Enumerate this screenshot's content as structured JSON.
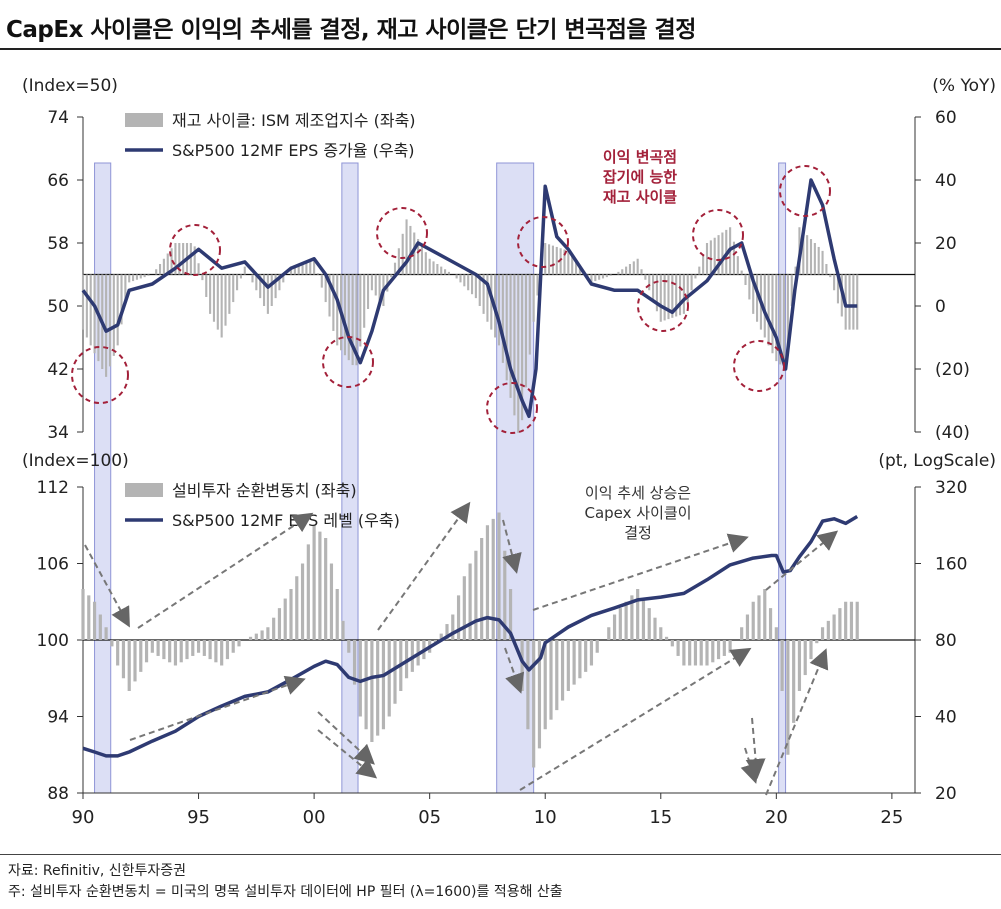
{
  "title": "CapEx 사이클은 이익의 추세를 결정, 재고 사이클은 단기 변곡점을 결정",
  "footnotes": [
    "자료: Refinitiv, 신한투자증권",
    "주: 설비투자 순환변동치 = 미국의 명목 설비투자 데이터에 HP 필터 (λ=1600)를 적용해 산출"
  ],
  "colors": {
    "bar": "#b4b4b4",
    "line": "#2e3a72",
    "shade": "#dcdff5",
    "shade_edge": "#8f95d6",
    "circle": "#a3213a",
    "arrow": "#777777"
  },
  "chart_data": [
    {
      "type": "bar+line",
      "left_axis_unit": "(Index=50)",
      "right_axis_unit": "(% YoY)",
      "left_ticks": [
        "74",
        "66",
        "58",
        "50",
        "42",
        "34"
      ],
      "right_ticks": [
        "60",
        "40",
        "20",
        "0",
        "(20)",
        "(40)"
      ],
      "ylim_left": [
        34,
        74
      ],
      "ylim_right": [
        -40,
        60
      ],
      "legend": [
        "재고 사이클: ISM 제조업지수 (좌축)",
        "S&P500 12MF EPS 증가율 (우축)"
      ],
      "legend_placement": "top-left",
      "annotation": [
        "이익 변곡점",
        "잡기에 능한",
        "재고 사이클"
      ],
      "recession_shading": [
        [
          1990.5,
          1991.2
        ],
        [
          2001.2,
          2001.9
        ],
        [
          2007.9,
          2009.5
        ],
        [
          2020.1,
          2020.4
        ]
      ],
      "bars": {
        "name": "재고 사이클: ISM 제조업지수",
        "x": [
          1990,
          1991,
          1991.5,
          1992,
          1993,
          1994,
          1994.8,
          1995.5,
          1996,
          1997,
          1998,
          1999,
          2000,
          2001,
          2001.8,
          2002.5,
          2003,
          2004,
          2005,
          2006,
          2007,
          2008,
          2008.9,
          2009.5,
          2010,
          2011,
          2012,
          2013,
          2014,
          2015,
          2016,
          2017,
          2018,
          2019,
          2020,
          2020.4,
          2021,
          2022,
          2022.7,
          2023,
          2023.5
        ],
        "y": [
          47,
          41,
          45,
          53,
          54,
          58,
          58,
          49,
          46,
          55,
          49,
          55,
          56,
          45,
          42,
          52,
          50,
          61,
          56,
          54,
          51,
          45,
          33,
          48,
          58,
          57,
          53,
          54,
          56,
          48,
          49,
          58,
          60,
          49,
          43,
          42,
          60,
          57,
          50,
          47,
          47
        ]
      },
      "line": {
        "name": "S&P500 12MF EPS 증가율",
        "x": [
          1990,
          1990.5,
          1991,
          1991.5,
          1992,
          1993,
          1994,
          1995,
          1996,
          1997,
          1998,
          1999,
          2000,
          2000.5,
          2001,
          2001.5,
          2002,
          2002.5,
          2003,
          2004,
          2004.5,
          2005,
          2006,
          2007,
          2007.5,
          2008,
          2008.5,
          2009,
          2009.3,
          2009.6,
          2010,
          2010.5,
          2011,
          2012,
          2013,
          2014,
          2015,
          2015.5,
          2016,
          2017,
          2018,
          2018.5,
          2019,
          2019.5,
          2020,
          2020.4,
          2020.8,
          2021,
          2021.5,
          2022,
          2022.5,
          2023,
          2023.5
        ],
        "y": [
          5,
          0,
          -8,
          -6,
          5,
          7,
          12,
          18,
          12,
          14,
          6,
          12,
          15,
          10,
          2,
          -10,
          -18,
          -8,
          5,
          14,
          20,
          18,
          14,
          10,
          7,
          -5,
          -20,
          -30,
          -35,
          -20,
          38,
          22,
          18,
          7,
          5,
          5,
          0,
          -2,
          2,
          8,
          18,
          20,
          8,
          -2,
          -10,
          -20,
          5,
          15,
          40,
          32,
          15,
          0,
          0
        ]
      }
    },
    {
      "type": "bar+line",
      "left_axis_unit": "(Index=100)",
      "right_axis_unit": "(pt, LogScale)",
      "left_ticks": [
        "112",
        "106",
        "100",
        "94",
        "88"
      ],
      "right_ticks": [
        "320",
        "160",
        "80",
        "40",
        "20"
      ],
      "ylim_left": [
        88,
        112
      ],
      "ylim_right": [
        20,
        320
      ],
      "y_scale_right": "log",
      "x_ticks": [
        "90",
        "95",
        "00",
        "05",
        "10",
        "15",
        "20",
        "25"
      ],
      "legend": [
        "설비투자 순환변동치 (좌축)",
        "S&P500 12MF EPS 레벨 (우축)"
      ],
      "legend_placement": "top-left",
      "annotation": [
        "이익 추세 상승은",
        "Capex 사이클이",
        "결정"
      ],
      "bars": {
        "name": "설비투자 순환변동치",
        "x": [
          1990,
          1990.5,
          1991,
          1991.5,
          1992,
          1993,
          1994,
          1995,
          1996,
          1997,
          1998,
          1999,
          1999.5,
          2000,
          2000.5,
          2001,
          2001.5,
          2002,
          2002.5,
          2003,
          2004,
          2005,
          2006,
          2006.5,
          2007,
          2007.5,
          2008,
          2008.5,
          2009,
          2009.5,
          2010,
          2011,
          2012,
          2013,
          2014,
          2015,
          2016,
          2017,
          2018,
          2019,
          2019.5,
          2020,
          2020.5,
          2021,
          2022,
          2022.5,
          2023,
          2023.5
        ],
        "y": [
          104,
          103,
          101,
          98,
          96,
          99,
          98,
          99,
          98,
          100,
          101,
          104,
          106,
          109,
          108,
          104,
          99,
          94,
          92,
          93,
          97,
          99,
          102,
          105,
          107,
          109,
          110,
          104,
          96,
          90,
          93,
          96,
          98,
          102,
          104,
          101,
          98,
          98,
          99,
          103,
          104,
          101,
          91,
          96,
          101,
          102,
          103,
          103
        ]
      },
      "line": {
        "name": "S&P500 12MF EPS 레벨",
        "x": [
          1990,
          1990.5,
          1991,
          1991.5,
          1992,
          1993,
          1994,
          1995,
          1996,
          1997,
          1998,
          1999,
          2000,
          2000.5,
          2001,
          2001.5,
          2002,
          2002.5,
          2003,
          2004,
          2005,
          2006,
          2007,
          2007.5,
          2008,
          2008.5,
          2009,
          2009.3,
          2009.8,
          2010,
          2011,
          2012,
          2013,
          2014,
          2015,
          2016,
          2017,
          2018,
          2019,
          2019.8,
          2020,
          2020.3,
          2020.6,
          2021,
          2021.5,
          2022,
          2022.5,
          2023,
          2023.5
        ],
        "y": [
          30,
          29,
          28,
          28,
          29,
          32,
          35,
          40,
          44,
          48,
          50,
          56,
          63,
          66,
          64,
          57,
          55,
          57,
          58,
          66,
          75,
          85,
          95,
          98,
          96,
          85,
          66,
          61,
          68,
          78,
          90,
          100,
          107,
          115,
          118,
          122,
          138,
          158,
          168,
          172,
          172,
          148,
          150,
          170,
          195,
          235,
          240,
          230,
          245
        ]
      }
    }
  ]
}
